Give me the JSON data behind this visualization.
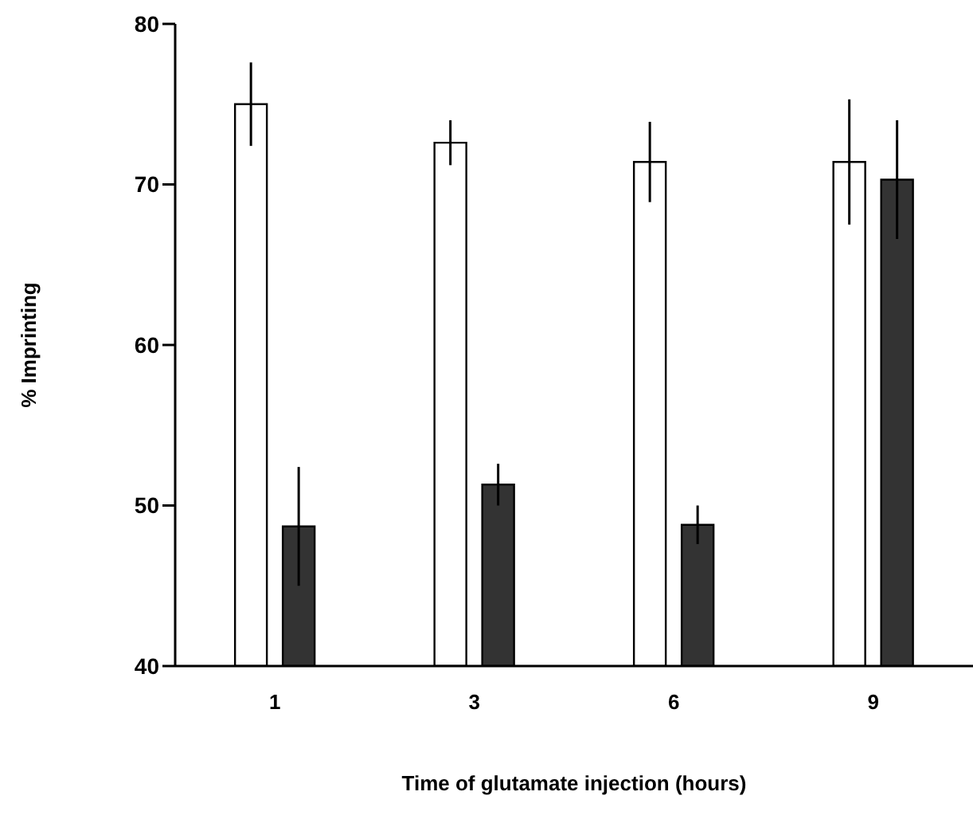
{
  "chart_data": {
    "type": "bar",
    "xlabel": "Time  of  glutamate  injection  (hours)",
    "ylabel": "%  Imprinting",
    "categories": [
      "1",
      "3",
      "6",
      "9"
    ],
    "series": [
      {
        "color": "#ffffff",
        "values": [
          75.0,
          72.6,
          71.4,
          71.4
        ],
        "errors": [
          2.6,
          1.4,
          2.5,
          3.9
        ]
      },
      {
        "color": "#333333",
        "values": [
          48.7,
          51.3,
          48.8,
          70.3
        ],
        "errors": [
          3.7,
          1.3,
          1.2,
          3.7
        ]
      }
    ],
    "ylim": [
      40,
      80
    ],
    "yticks": [
      40,
      50,
      60,
      70,
      80
    ],
    "grid": false,
    "legend": false
  }
}
